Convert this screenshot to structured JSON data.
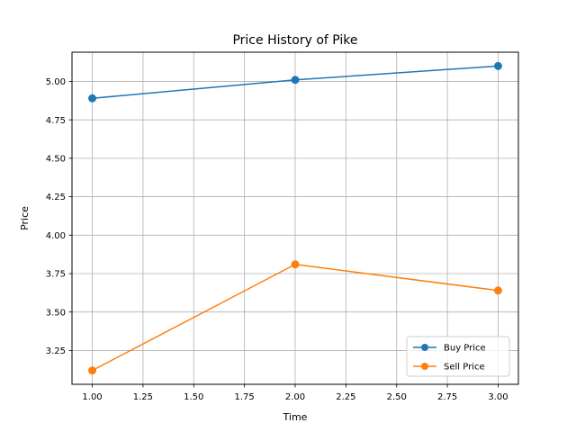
{
  "chart_data": {
    "type": "line",
    "title": "Price History of Pike",
    "xlabel": "Time",
    "ylabel": "Price",
    "xlim": [
      0.9,
      3.1
    ],
    "ylim": [
      3.03,
      5.19
    ],
    "xticks": [
      1.0,
      1.25,
      1.5,
      1.75,
      2.0,
      2.25,
      2.5,
      2.75,
      3.0
    ],
    "xtick_labels": [
      "1.00",
      "1.25",
      "1.50",
      "1.75",
      "2.00",
      "2.25",
      "2.50",
      "2.75",
      "3.00"
    ],
    "yticks": [
      3.25,
      3.5,
      3.75,
      4.0,
      4.25,
      4.5,
      4.75,
      5.0
    ],
    "ytick_labels": [
      "3.25",
      "3.50",
      "3.75",
      "4.00",
      "4.25",
      "4.50",
      "4.75",
      "5.00"
    ],
    "grid": true,
    "legend_position": "lower-right",
    "x": [
      1,
      2,
      3
    ],
    "series": [
      {
        "name": "Buy Price",
        "values": [
          4.89,
          5.01,
          5.1
        ],
        "color": "#1f77b4",
        "marker": "circle"
      },
      {
        "name": "Sell Price",
        "values": [
          3.12,
          3.81,
          3.64
        ],
        "color": "#ff7f0e",
        "marker": "circle"
      }
    ]
  }
}
